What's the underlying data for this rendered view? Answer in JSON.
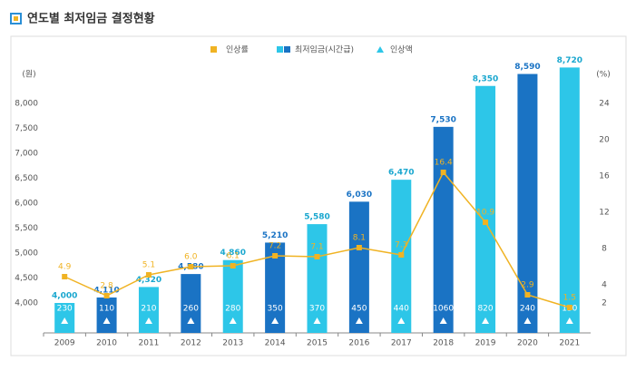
{
  "chart_data": {
    "type": "bar",
    "title": "연도별 최저임금 결정현황",
    "y_label": "(원)",
    "y2_label": "(%)",
    "categories": [
      "2009",
      "2010",
      "2011",
      "2012",
      "2013",
      "2014",
      "2015",
      "2016",
      "2017",
      "2018",
      "2019",
      "2020",
      "2021"
    ],
    "series": [
      {
        "name": "인상률",
        "color": "#f0b323",
        "axis": "y2",
        "values": [
          4.9,
          2.8,
          5.1,
          6.0,
          6.1,
          7.2,
          7.1,
          8.1,
          7.3,
          16.4,
          10.9,
          2.9,
          1.5
        ],
        "value_labels": [
          "4.9",
          "2.8",
          "5.1",
          "6.0",
          "6.1",
          "7.2",
          "7.1",
          "8.1",
          "7.3",
          "16.4",
          "10.9",
          "2.9",
          "1.5"
        ]
      },
      {
        "name": "최저임금(시간급)",
        "color": "#2dc6e8",
        "alt_color": "#1a73c4",
        "values": [
          4000,
          4110,
          4320,
          4580,
          4860,
          5210,
          5580,
          6030,
          6470,
          7530,
          8350,
          8590,
          8720
        ],
        "value_labels": [
          "4,000",
          "4,110",
          "4,320",
          "4,580",
          "4,860",
          "5,210",
          "5,580",
          "6,030",
          "6,470",
          "7,530",
          "8,350",
          "8,590",
          "8,720"
        ]
      },
      {
        "name": "인상액",
        "color": "#2dc6e8",
        "values": [
          230,
          110,
          210,
          260,
          280,
          350,
          370,
          450,
          440,
          1060,
          820,
          240,
          130
        ]
      }
    ],
    "ylim": [
      3400,
      8800
    ],
    "yticks": [
      {
        "value": 4000,
        "label": "4,000"
      },
      {
        "value": 4500,
        "label": "4,500"
      },
      {
        "value": 5000,
        "label": "5,000"
      },
      {
        "value": 5500,
        "label": "5,500"
      },
      {
        "value": 6000,
        "label": "6,000"
      },
      {
        "value": 6500,
        "label": "6,500"
      },
      {
        "value": 7000,
        "label": "7,000"
      },
      {
        "value": 7500,
        "label": "7,500"
      },
      {
        "value": 8000,
        "label": "8,000"
      }
    ],
    "y2lim": [
      -1.3,
      28.4
    ],
    "y2ticks": [
      2,
      4,
      8,
      12,
      16,
      20,
      24
    ]
  }
}
